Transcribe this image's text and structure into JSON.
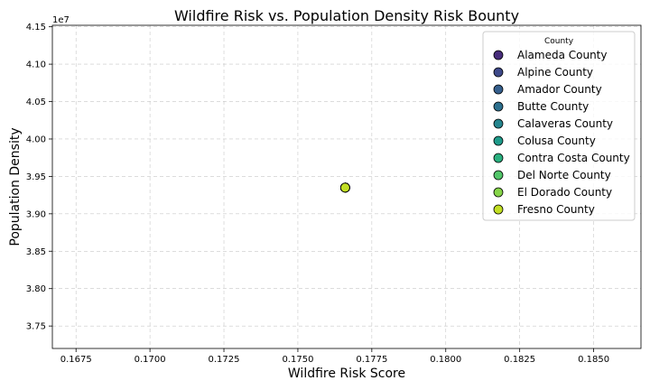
{
  "chart_data": {
    "type": "scatter",
    "title": "Wildfire Risk vs. Population Density Risk Bounty",
    "xlabel": "Wildfire Risk Score",
    "ylabel": "Population Density",
    "y_offset_label": "1e7",
    "xlim": [
      0.1667,
      0.1866
    ],
    "ylim": [
      37.2,
      41.52
    ],
    "x_ticks": [
      0.1675,
      0.17,
      0.1725,
      0.175,
      0.1775,
      0.18,
      0.1825,
      0.185
    ],
    "x_tick_labels": [
      "0.1675",
      "0.1700",
      "0.1725",
      "0.1750",
      "0.1775",
      "0.1800",
      "0.1825",
      "0.1850"
    ],
    "y_ticks": [
      37.5,
      38.0,
      38.5,
      39.0,
      39.5,
      40.0,
      40.5,
      41.0,
      41.5
    ],
    "y_tick_labels": [
      "3.75",
      "3.80",
      "3.85",
      "3.90",
      "3.95",
      "4.00",
      "4.05",
      "4.10",
      "4.15"
    ],
    "grid": true,
    "legend": {
      "title": "County",
      "placement": "top-right"
    },
    "series": [
      {
        "name": "Alameda County",
        "color": "#472d7b",
        "points": [
          {
            "x": 0.1766,
            "y": 39.35
          }
        ]
      },
      {
        "name": "Alpine County",
        "color": "#3e4989",
        "points": [
          {
            "x": 0.1766,
            "y": 39.35
          }
        ]
      },
      {
        "name": "Amador County",
        "color": "#355f8d",
        "points": [
          {
            "x": 0.1766,
            "y": 39.35
          }
        ]
      },
      {
        "name": "Butte County",
        "color": "#2d708e",
        "points": [
          {
            "x": 0.1766,
            "y": 39.35
          }
        ]
      },
      {
        "name": "Calaveras County",
        "color": "#25858e",
        "points": [
          {
            "x": 0.1766,
            "y": 39.35
          }
        ]
      },
      {
        "name": "Colusa County",
        "color": "#1e9b8a",
        "points": [
          {
            "x": 0.1766,
            "y": 39.35
          }
        ]
      },
      {
        "name": "Contra Costa County",
        "color": "#2ab07f",
        "points": [
          {
            "x": 0.1766,
            "y": 39.35
          }
        ]
      },
      {
        "name": "Del Norte County",
        "color": "#52c569",
        "points": [
          {
            "x": 0.1766,
            "y": 39.35
          }
        ]
      },
      {
        "name": "El Dorado County",
        "color": "#86d549",
        "points": [
          {
            "x": 0.1766,
            "y": 39.35
          }
        ]
      },
      {
        "name": "Fresno County",
        "color": "#c2df23",
        "points": [
          {
            "x": 0.1766,
            "y": 39.35
          }
        ]
      }
    ]
  }
}
